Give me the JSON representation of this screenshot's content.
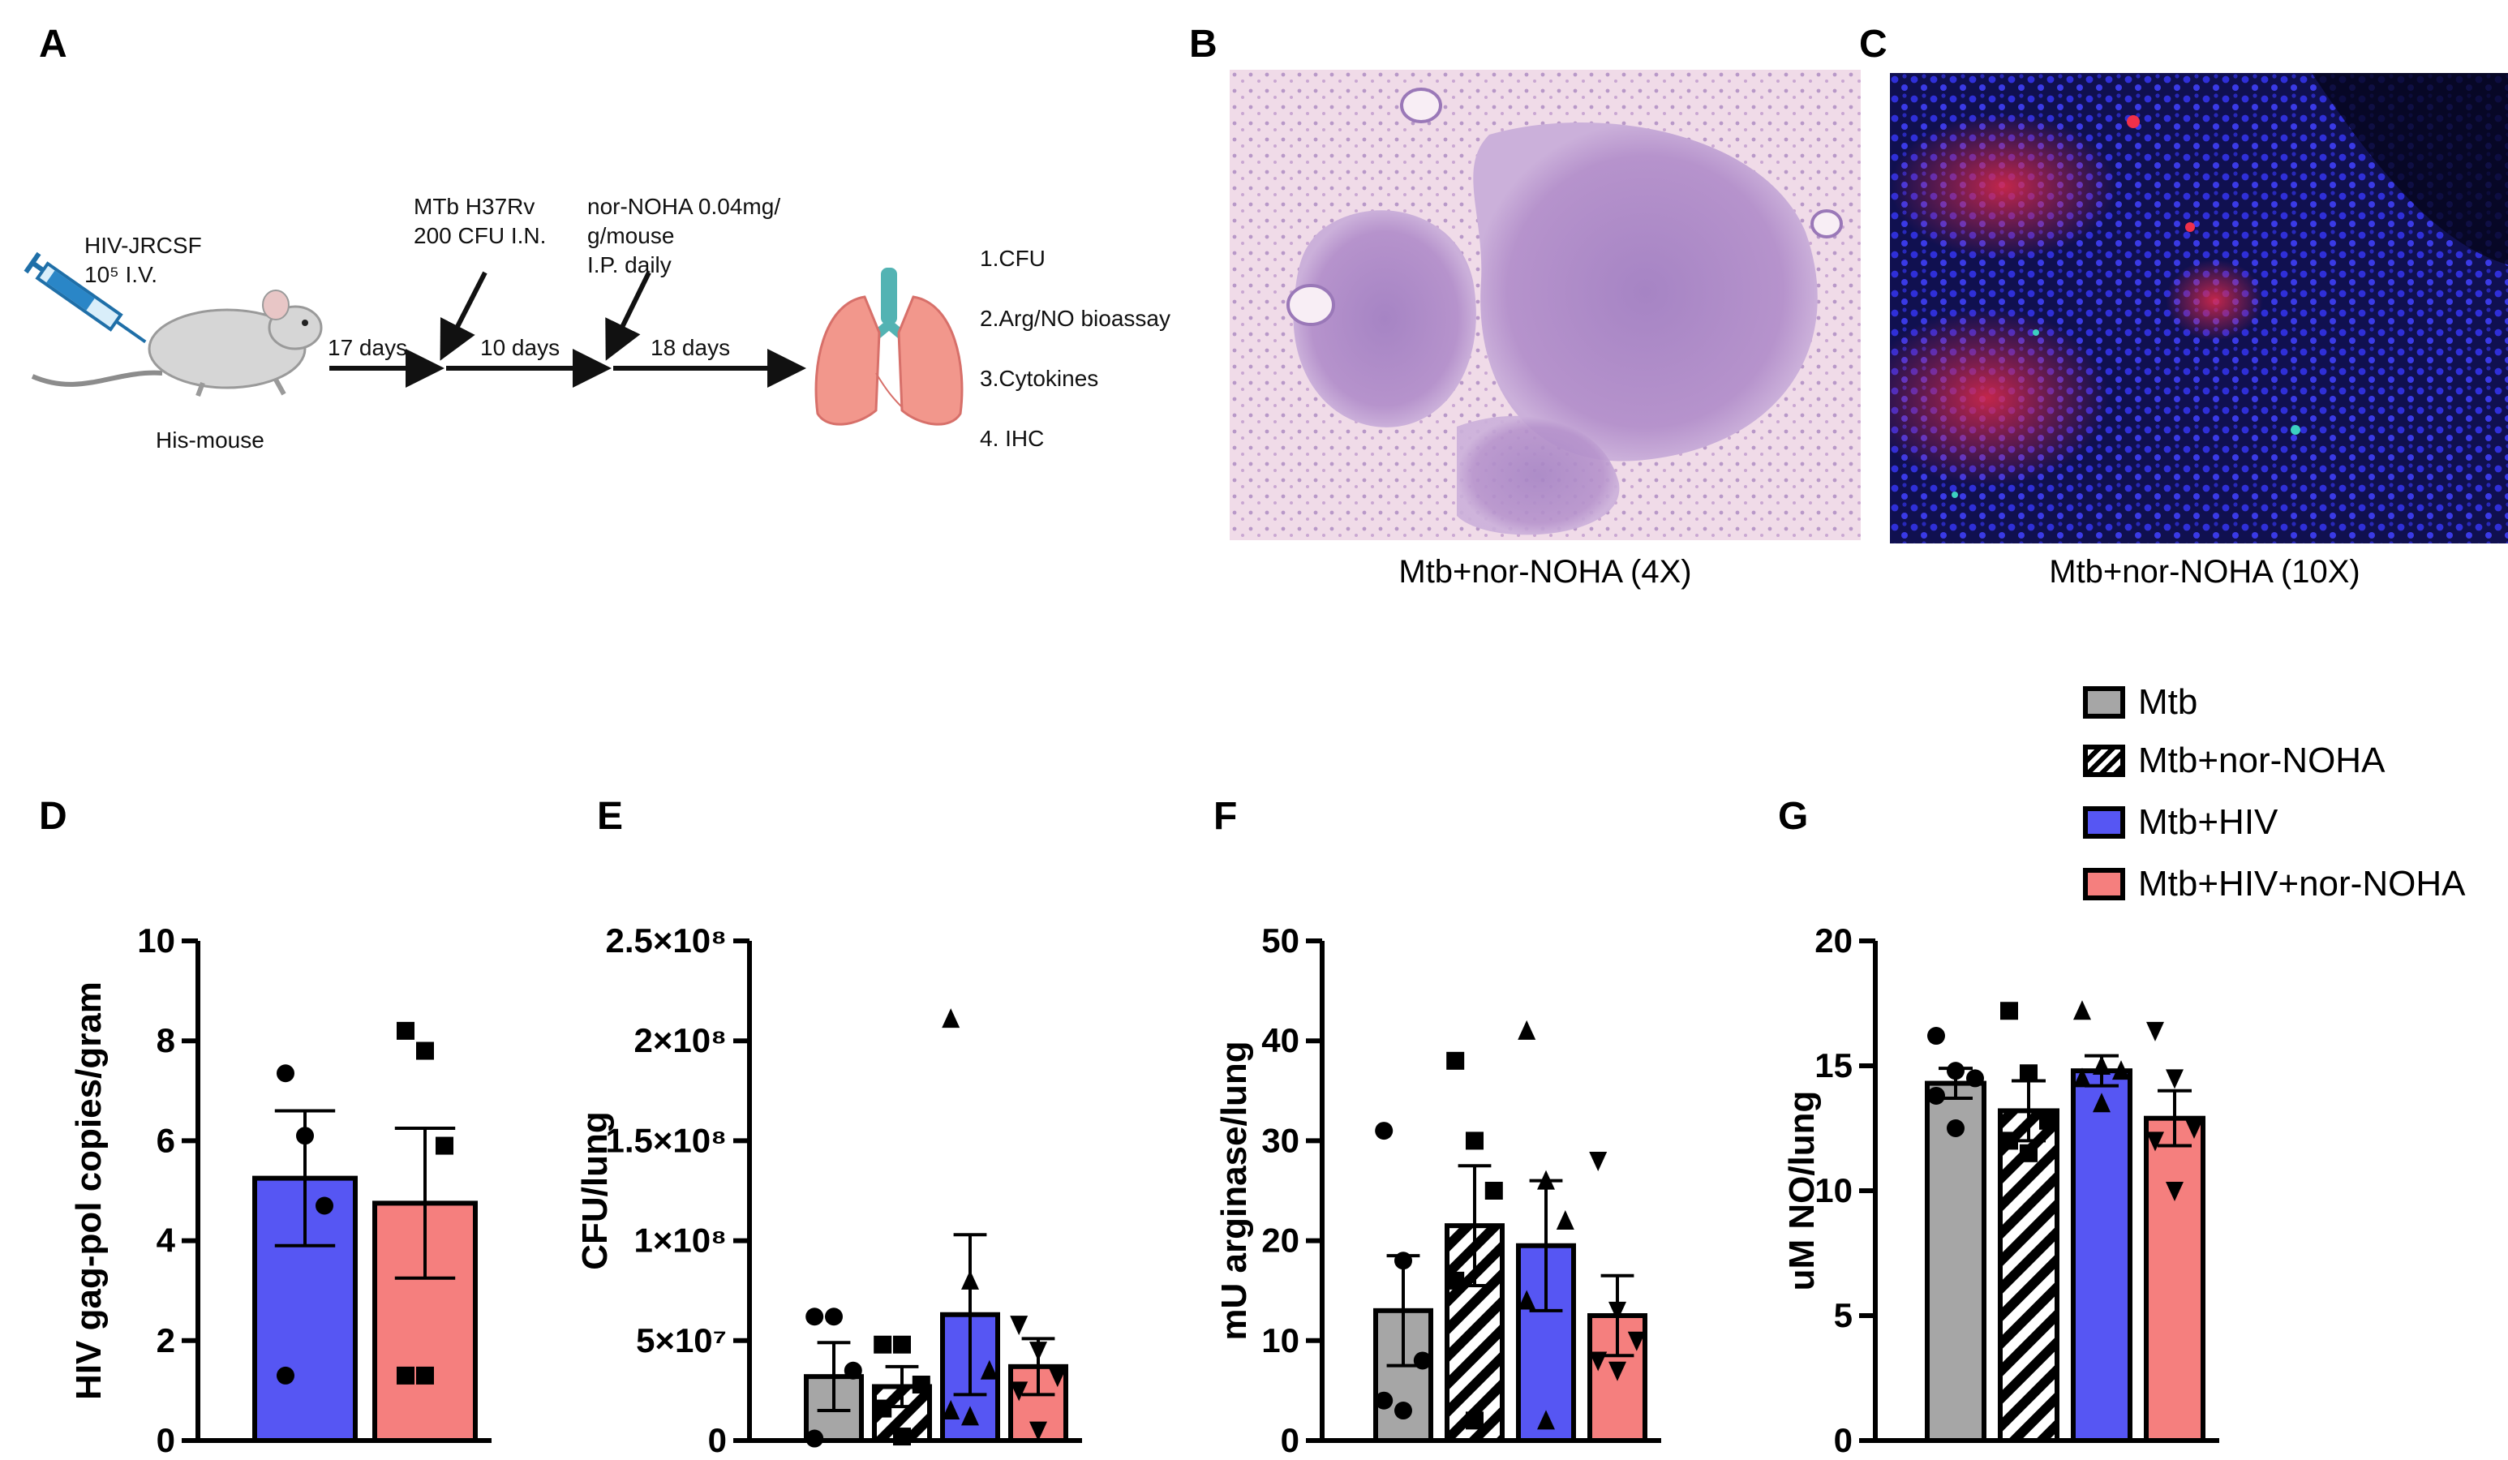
{
  "panel_letters": {
    "a": "A",
    "b": "B",
    "c": "C",
    "d": "D",
    "e": "E",
    "f": "F",
    "g": "G"
  },
  "schematic": {
    "injection": [
      "HIV-JRCSF",
      "10⁵ I.V."
    ],
    "mouse_label": "His-mouse",
    "intervals": [
      "17 days",
      "10 days",
      "18 days"
    ],
    "mtb_note": [
      "MTb H37Rv",
      "200 CFU I.N."
    ],
    "drug_note": [
      "nor-NOHA 0.04mg/",
      "g/mouse",
      "I.P. daily"
    ],
    "readouts": [
      "1.CFU",
      "2.Arg/NO bioassay",
      "3.Cytokines",
      "4. IHC"
    ]
  },
  "micrographs": {
    "b_caption": "Mtb+nor-NOHA (4X)",
    "c_caption": "Mtb+nor-NOHA (10X)"
  },
  "legend": [
    {
      "label": "Mtb",
      "color": "#a6a6a6",
      "pattern": "solid"
    },
    {
      "label": "Mtb+nor-NOHA",
      "color": "#ffffff",
      "pattern": "hatch"
    },
    {
      "label": "Mtb+HIV",
      "color": "#5656f3",
      "pattern": "solid"
    },
    {
      "label": "Mtb+HIV+nor-NOHA",
      "color": "#f57f7e",
      "pattern": "solid"
    }
  ],
  "chart_data": [
    {
      "panel": "D",
      "type": "bar",
      "ylabel": "HIV gag-pol copies/gram",
      "ylim": [
        0,
        10
      ],
      "ticks": [
        0,
        2,
        4,
        6,
        8,
        10
      ],
      "tick_labels": [
        "0",
        "2",
        "4",
        "6",
        "8",
        "10"
      ],
      "series": [
        {
          "group": "Mtb+HIV",
          "mean": 5.25,
          "sem": 1.35,
          "points": [
            7.35,
            6.1,
            4.7,
            1.3
          ],
          "marker": "circle"
        },
        {
          "group": "Mtb+HIV+nor-NOHA",
          "mean": 4.75,
          "sem": 1.5,
          "points": [
            8.2,
            7.8,
            5.9,
            1.3,
            1.3
          ],
          "marker": "square"
        }
      ]
    },
    {
      "panel": "E",
      "type": "bar",
      "ylabel": "CFU/lung",
      "ylim": [
        0,
        250000000
      ],
      "ticks": [
        0,
        50000000,
        100000000,
        150000000,
        200000000,
        250000000
      ],
      "tick_labels": [
        "0",
        "5×10⁷",
        "1×10⁸",
        "1.5×10⁸",
        "2×10⁸",
        "2.5×10⁸"
      ],
      "series": [
        {
          "group": "Mtb",
          "mean": 32000000,
          "sem": 17000000,
          "points": [
            62000000,
            62000000,
            35000000,
            1000000
          ],
          "marker": "circle"
        },
        {
          "group": "Mtb+nor-NOHA",
          "mean": 27000000,
          "sem": 10000000,
          "points": [
            48000000,
            48000000,
            28000000,
            16000000,
            2000000
          ],
          "marker": "square"
        },
        {
          "group": "Mtb+HIV",
          "mean": 63000000,
          "sem": 40000000,
          "points": [
            211000000,
            80000000,
            35000000,
            15000000,
            12000000
          ],
          "marker": "triangle"
        },
        {
          "group": "Mtb+HIV+nor-NOHA",
          "mean": 37000000,
          "sem": 14000000,
          "points": [
            58000000,
            45000000,
            32000000,
            25000000,
            5000000
          ],
          "marker": "invtriangle"
        }
      ]
    },
    {
      "panel": "F",
      "type": "bar",
      "ylabel": "mU arginase/lung",
      "ylim": [
        0,
        50
      ],
      "ticks": [
        0,
        10,
        20,
        30,
        40,
        50
      ],
      "tick_labels": [
        "0",
        "10",
        "20",
        "30",
        "40",
        "50"
      ],
      "series": [
        {
          "group": "Mtb",
          "mean": 13,
          "sem": 5.5,
          "points": [
            31,
            18,
            8,
            4,
            3
          ],
          "marker": "circle"
        },
        {
          "group": "Mtb+nor-NOHA",
          "mean": 21.5,
          "sem": 6,
          "points": [
            38,
            30,
            25,
            16,
            2
          ],
          "marker": "square"
        },
        {
          "group": "Mtb+HIV",
          "mean": 19.5,
          "sem": 6.5,
          "points": [
            41,
            26,
            22,
            14,
            2
          ],
          "marker": "triangle"
        },
        {
          "group": "Mtb+HIV+nor-NOHA",
          "mean": 12.5,
          "sem": 4,
          "points": [
            28,
            13,
            10,
            8,
            7
          ],
          "marker": "invtriangle"
        }
      ]
    },
    {
      "panel": "G",
      "type": "bar",
      "ylabel": "uM NO/lung",
      "ylim": [
        0,
        20
      ],
      "ticks": [
        0,
        5,
        10,
        15,
        20
      ],
      "tick_labels": [
        "0",
        "5",
        "10",
        "15",
        "20"
      ],
      "series": [
        {
          "group": "Mtb",
          "mean": 14.3,
          "sem": 0.6,
          "points": [
            16.2,
            14.8,
            14.5,
            13.8,
            12.5
          ],
          "marker": "circle"
        },
        {
          "group": "Mtb+nor-NOHA",
          "mean": 13.2,
          "sem": 1.2,
          "points": [
            17.2,
            14.7,
            12.8,
            12.0,
            11.5
          ],
          "marker": "square"
        },
        {
          "group": "Mtb+HIV",
          "mean": 14.8,
          "sem": 0.6,
          "points": [
            17.2,
            15.0,
            14.8,
            14.5,
            13.5
          ],
          "marker": "triangle"
        },
        {
          "group": "Mtb+HIV+nor-NOHA",
          "mean": 12.9,
          "sem": 1.1,
          "points": [
            16.4,
            14.5,
            12.5,
            12.0,
            10.0
          ],
          "marker": "invtriangle"
        }
      ]
    }
  ]
}
